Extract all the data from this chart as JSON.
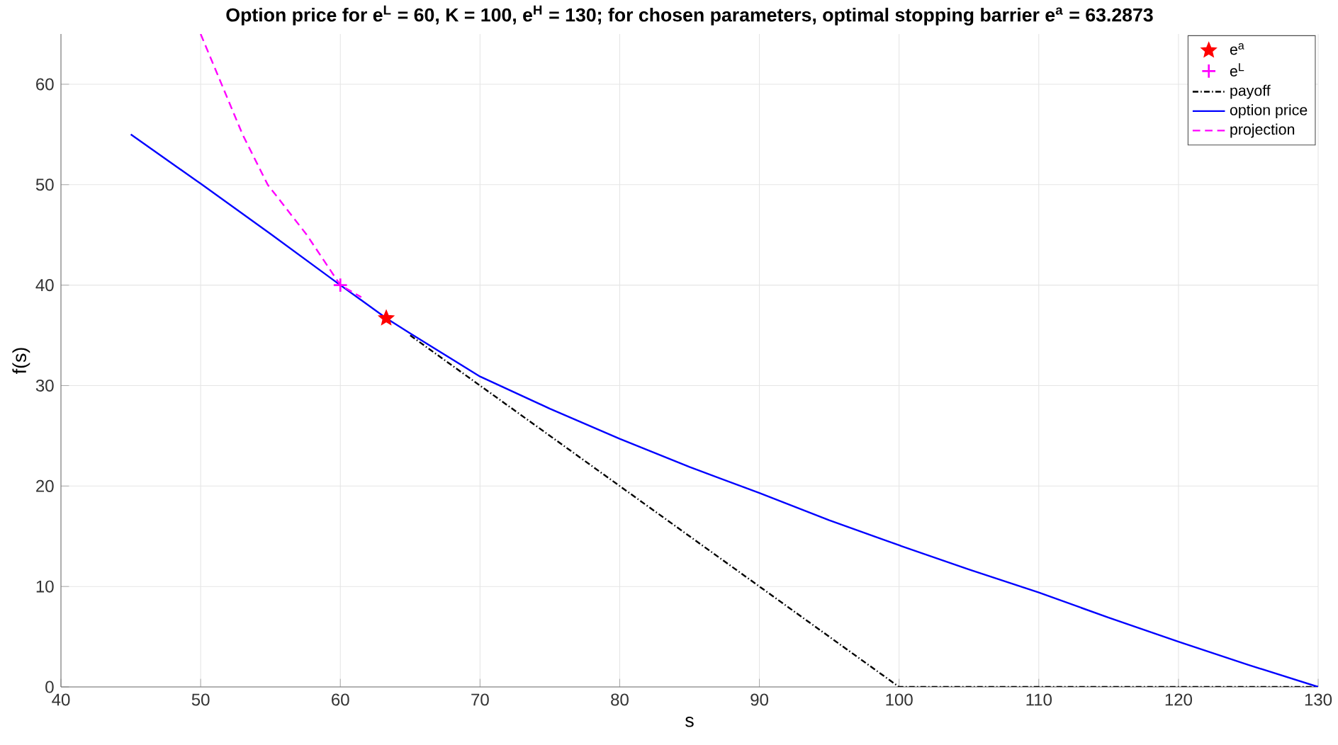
{
  "chart_data": {
    "type": "line",
    "title": "**Option price for e$^{L}$ = 60, K = 100, e$^{H}$ = 130; for chosen parameters, optimal stopping barrier e$^{a}$ = 63.2873**",
    "xlabel": "s",
    "ylabel": "f(s)",
    "xlim": [
      40,
      130
    ],
    "ylim": [
      0,
      65
    ],
    "xticks": [
      40,
      50,
      60,
      70,
      80,
      90,
      100,
      110,
      120,
      130
    ],
    "yticks": [
      0,
      10,
      20,
      30,
      40,
      50,
      60
    ],
    "grid": true,
    "legend": "top right",
    "series": [
      {
        "name": "e$^{a}$",
        "type": "scatter",
        "marker": "star",
        "color": "#ff0000",
        "x": [
          63.2873
        ],
        "values": [
          36.7
        ]
      },
      {
        "name": "e$^{L}$",
        "type": "scatter",
        "marker": "cross",
        "color": "#ff00ff",
        "x": [
          60
        ],
        "values": [
          40
        ]
      },
      {
        "name": "payoff",
        "line_style": "dashdot",
        "color": "#000000",
        "x": [
          65,
          100,
          130
        ],
        "values": [
          35,
          0,
          0
        ]
      },
      {
        "name": "option price",
        "line_style": "solid",
        "color": "#0000ff",
        "x": [
          45,
          50,
          55,
          60,
          63.3,
          65,
          70,
          75,
          80,
          85,
          90,
          95,
          100,
          105,
          110,
          115,
          120,
          125,
          130
        ],
        "values": [
          55,
          50.1,
          45.1,
          40,
          36.7,
          35.2,
          30.9,
          27.7,
          24.7,
          21.9,
          19.3,
          16.6,
          14.1,
          11.7,
          9.4,
          6.9,
          4.5,
          2.2,
          0
        ]
      },
      {
        "name": "projection",
        "line_style": "dashed",
        "color": "#ff00ff",
        "x": [
          50,
          51.5,
          53,
          54.8,
          57.6,
          60,
          61.5
        ],
        "values": [
          65,
          60,
          55,
          50,
          45,
          40,
          38.8
        ]
      }
    ]
  }
}
